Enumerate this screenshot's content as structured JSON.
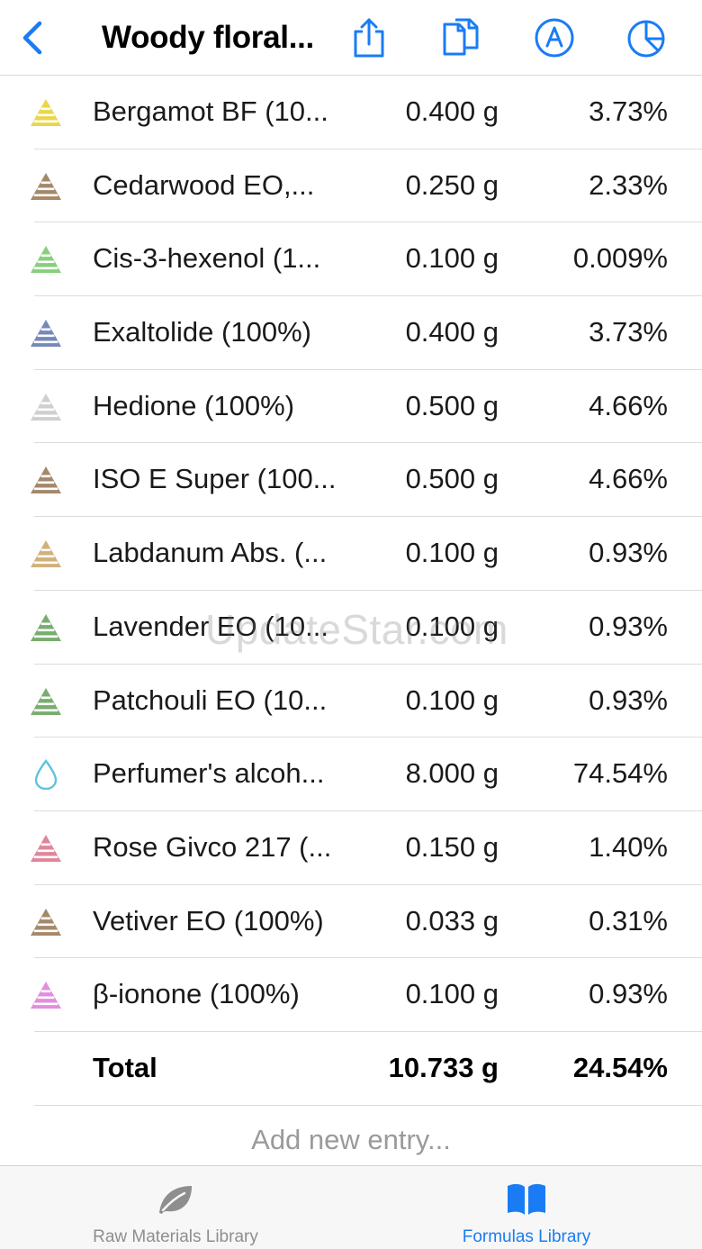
{
  "header": {
    "title": "Woody floral...",
    "icons": [
      "back-icon",
      "share-icon",
      "duplicate-icon",
      "text-mode-icon",
      "pie-chart-icon"
    ],
    "accent_color": "#1a7cf5"
  },
  "rows": [
    {
      "name": "Bergamot BF (10...",
      "amount": "0.400 g",
      "percent": "3.73%",
      "color": "#e9d64a",
      "icon": "pyramid-icon"
    },
    {
      "name": "Cedarwood EO,...",
      "amount": "0.250 g",
      "percent": "2.33%",
      "color": "#a5886b",
      "icon": "pyramid-icon"
    },
    {
      "name": "Cis-3-hexenol (1...",
      "amount": "0.100 g",
      "percent": "0.009%",
      "color": "#86d07a",
      "icon": "pyramid-icon"
    },
    {
      "name": "Exaltolide (100%)",
      "amount": "0.400 g",
      "percent": "3.73%",
      "color": "#7489b8",
      "icon": "pyramid-icon"
    },
    {
      "name": "Hedione (100%)",
      "amount": "0.500 g",
      "percent": "4.66%",
      "color": "#cfcfcf",
      "icon": "pyramid-icon"
    },
    {
      "name": "ISO E Super (100...",
      "amount": "0.500 g",
      "percent": "4.66%",
      "color": "#a5886b",
      "icon": "pyramid-icon"
    },
    {
      "name": "Labdanum Abs. (...",
      "amount": "0.100 g",
      "percent": "0.93%",
      "color": "#d1b17a",
      "icon": "pyramid-icon"
    },
    {
      "name": "Lavender EO (10...",
      "amount": "0.100 g",
      "percent": "0.93%",
      "color": "#79ad6e",
      "icon": "pyramid-icon"
    },
    {
      "name": "Patchouli EO (10...",
      "amount": "0.100 g",
      "percent": "0.93%",
      "color": "#79ad6e",
      "icon": "pyramid-icon"
    },
    {
      "name": "Perfumer's alcoh...",
      "amount": "8.000 g",
      "percent": "74.54%",
      "color": "#5ec3df",
      "icon": "drop-icon"
    },
    {
      "name": "Rose Givco 217 (...",
      "amount": "0.150 g",
      "percent": "1.40%",
      "color": "#e0869a",
      "icon": "pyramid-icon"
    },
    {
      "name": "Vetiver EO (100%)",
      "amount": "0.033 g",
      "percent": "0.31%",
      "color": "#a5886b",
      "icon": "pyramid-icon"
    },
    {
      "name": "β-ionone (100%)",
      "amount": "0.100 g",
      "percent": "0.93%",
      "color": "#e28ee0",
      "icon": "pyramid-icon"
    }
  ],
  "total": {
    "label": "Total",
    "amount": "10.733 g",
    "percent": "24.54%"
  },
  "add_entry": "Add new entry...",
  "watermark": "UpdateStar.com",
  "tabs": [
    {
      "label": "Raw Materials Library",
      "icon": "leaf-icon",
      "active": false,
      "color": "#8e8e8e"
    },
    {
      "label": "Formulas Library",
      "icon": "book-icon",
      "active": true,
      "color": "#1a7cf5"
    }
  ]
}
